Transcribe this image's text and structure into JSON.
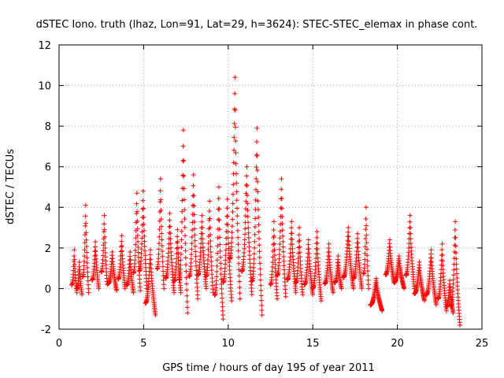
{
  "chart_data": {
    "type": "scatter",
    "title": "dSTEC Iono. truth (lhaz, Lon=91, Lat=29, h=3624): STEC-STEC_elemax in phase cont.",
    "xlabel": "GPS time / hours of day 195 of year 2011",
    "ylabel": "dSTEC  / TECUs",
    "xlim": [
      0,
      25
    ],
    "ylim": [
      -2,
      12
    ],
    "xticks": [
      0,
      5,
      10,
      15,
      20,
      25
    ],
    "yticks": [
      -2,
      0,
      2,
      4,
      6,
      8,
      10,
      12
    ],
    "grid": true,
    "marker": "+",
    "series": [
      {
        "color": "#ff0000",
        "arcs": [
          {
            "start": 0.75,
            "end": 1.05,
            "min": -0.2,
            "max": 1.9
          },
          {
            "start": 1.05,
            "end": 1.35,
            "min": -0.3,
            "max": 1.3
          },
          {
            "start": 1.4,
            "end": 1.75,
            "min": -0.2,
            "max": 4.1
          },
          {
            "start": 1.95,
            "end": 2.35,
            "min": 0.0,
            "max": 2.3
          },
          {
            "start": 2.5,
            "end": 2.85,
            "min": 0.2,
            "max": 3.6
          },
          {
            "start": 2.9,
            "end": 3.4,
            "min": -0.1,
            "max": 1.8
          },
          {
            "start": 3.5,
            "end": 3.9,
            "min": 0.0,
            "max": 2.6
          },
          {
            "start": 4.0,
            "end": 4.4,
            "min": -0.2,
            "max": 1.8
          },
          {
            "start": 4.4,
            "end": 4.8,
            "min": -0.1,
            "max": 4.7
          },
          {
            "start": 4.75,
            "end": 5.2,
            "min": 0.0,
            "max": 4.8
          },
          {
            "start": 5.1,
            "end": 5.7,
            "min": -1.3,
            "max": 1.9
          },
          {
            "start": 5.8,
            "end": 6.2,
            "min": 0.0,
            "max": 5.4
          },
          {
            "start": 6.3,
            "end": 6.8,
            "min": -0.2,
            "max": 3.7
          },
          {
            "start": 6.8,
            "end": 7.2,
            "min": -0.2,
            "max": 2.9
          },
          {
            "start": 7.1,
            "end": 7.6,
            "min": -1.2,
            "max": 7.8
          },
          {
            "start": 7.7,
            "end": 8.2,
            "min": -0.5,
            "max": 5.6
          },
          {
            "start": 8.2,
            "end": 8.7,
            "min": 0.0,
            "max": 3.6
          },
          {
            "start": 8.7,
            "end": 9.1,
            "min": -0.2,
            "max": 4.3
          },
          {
            "start": 9.2,
            "end": 9.7,
            "min": -1.5,
            "max": 5.0
          },
          {
            "start": 9.7,
            "end": 10.2,
            "min": -0.6,
            "max": 4.4
          },
          {
            "start": 10.1,
            "end": 10.7,
            "min": -0.5,
            "max": 10.4
          },
          {
            "start": 10.8,
            "end": 11.4,
            "min": -0.3,
            "max": 6.0
          },
          {
            "start": 11.4,
            "end": 12.0,
            "min": -1.3,
            "max": 7.9
          },
          {
            "start": 12.5,
            "end": 12.9,
            "min": -0.5,
            "max": 3.3
          },
          {
            "start": 12.9,
            "end": 13.4,
            "min": -0.4,
            "max": 5.4
          },
          {
            "start": 13.5,
            "end": 14.0,
            "min": -0.2,
            "max": 3.3
          },
          {
            "start": 14.0,
            "end": 14.4,
            "min": -0.3,
            "max": 3.0
          },
          {
            "start": 14.5,
            "end": 15.0,
            "min": -0.3,
            "max": 2.4
          },
          {
            "start": 15.0,
            "end": 15.5,
            "min": -0.6,
            "max": 2.8
          },
          {
            "start": 15.7,
            "end": 16.2,
            "min": -0.2,
            "max": 2.2
          },
          {
            "start": 16.3,
            "end": 16.7,
            "min": 0.0,
            "max": 1.6
          },
          {
            "start": 16.8,
            "end": 17.4,
            "min": 0.0,
            "max": 3.0
          },
          {
            "start": 17.4,
            "end": 17.9,
            "min": 0.0,
            "max": 2.7
          },
          {
            "start": 18.0,
            "end": 18.3,
            "min": 0.0,
            "max": 4.0
          },
          {
            "start": 18.4,
            "end": 19.1,
            "min": -1.1,
            "max": 0.5
          },
          {
            "start": 19.3,
            "end": 19.8,
            "min": 0.3,
            "max": 2.4
          },
          {
            "start": 19.8,
            "end": 20.4,
            "min": 0.0,
            "max": 1.6
          },
          {
            "start": 20.5,
            "end": 21.0,
            "min": 0.0,
            "max": 3.6
          },
          {
            "start": 21.0,
            "end": 21.6,
            "min": -0.6,
            "max": 1.3
          },
          {
            "start": 21.7,
            "end": 22.3,
            "min": -0.8,
            "max": 1.9
          },
          {
            "start": 22.4,
            "end": 22.9,
            "min": -1.1,
            "max": 2.2
          },
          {
            "start": 22.9,
            "end": 23.3,
            "min": -1.2,
            "max": 0.4
          },
          {
            "start": 23.15,
            "end": 23.7,
            "min": -1.8,
            "max": 3.3
          }
        ]
      }
    ]
  }
}
